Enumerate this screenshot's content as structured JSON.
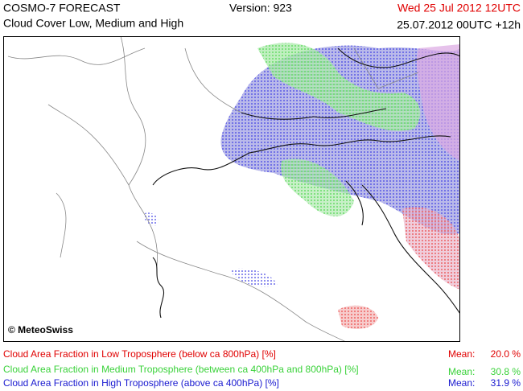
{
  "header": {
    "product": "COSMO-7 FORECAST",
    "title": "Cloud Cover Low, Medium and High",
    "version": "Version: 923",
    "valid_time": "Wed 25 Jul 2012 12UTC",
    "run": "25.07.2012 00UTC +12h"
  },
  "map": {
    "credit": "© MeteoSwiss"
  },
  "legend": [
    {
      "label": "Cloud Area Fraction in Low Troposphere (below ca 800hPa) [%]",
      "mean_label": "Mean:",
      "mean": "20.0 %"
    },
    {
      "label": "Cloud Area Fraction in Medium Troposphere (between ca 400hPa and 800hPa) [%]",
      "mean_label": "Mean:",
      "mean": "30.8 %"
    },
    {
      "label": "Cloud Area Fraction in High Troposphere (above ca 400hPa) [%]",
      "mean_label": "Mean:",
      "mean": "31.9 %"
    }
  ]
}
